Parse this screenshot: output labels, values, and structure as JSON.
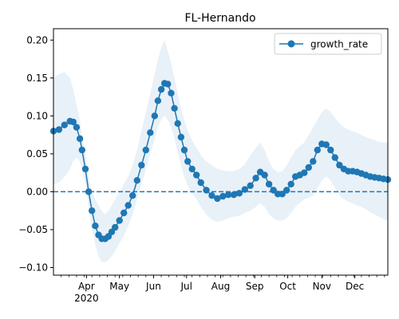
{
  "chart_data": {
    "type": "line",
    "title": "FL-Hernando",
    "xlabel": "",
    "ylabel": "",
    "x_range": [
      "2020-03-02",
      "2020-12-31"
    ],
    "ylim": [
      -0.11,
      0.215
    ],
    "x_ticks": [
      {
        "date": "2020-04-01",
        "label": "Apr",
        "sublabel": "2020"
      },
      {
        "date": "2020-05-01",
        "label": "May"
      },
      {
        "date": "2020-06-01",
        "label": "Jun"
      },
      {
        "date": "2020-07-01",
        "label": "Jul"
      },
      {
        "date": "2020-08-01",
        "label": "Aug"
      },
      {
        "date": "2020-09-01",
        "label": "Sep"
      },
      {
        "date": "2020-10-01",
        "label": "Oct"
      },
      {
        "date": "2020-11-01",
        "label": "Nov"
      },
      {
        "date": "2020-12-01",
        "label": "Dec"
      }
    ],
    "y_ticks": [
      -0.1,
      -0.05,
      0.0,
      0.05,
      0.1,
      0.15,
      0.2
    ],
    "y_tick_labels": [
      "−0.10",
      "−0.05",
      "0.00",
      "0.05",
      "0.10",
      "0.15",
      "0.20"
    ],
    "reference_line": {
      "y": 0.0,
      "style": "dashed"
    },
    "grid": false,
    "legend": {
      "position": "top-right",
      "entries": [
        "growth_rate"
      ]
    },
    "series": [
      {
        "name": "growth_rate",
        "color": "#1f77b4",
        "marker": "circle",
        "x": [
          "2020-03-02",
          "2020-03-07",
          "2020-03-12",
          "2020-03-17",
          "2020-03-20",
          "2020-03-23",
          "2020-03-26",
          "2020-03-28",
          "2020-03-31",
          "2020-04-03",
          "2020-04-06",
          "2020-04-09",
          "2020-04-12",
          "2020-04-15",
          "2020-04-18",
          "2020-04-21",
          "2020-04-24",
          "2020-04-27",
          "2020-05-01",
          "2020-05-05",
          "2020-05-09",
          "2020-05-13",
          "2020-05-17",
          "2020-05-21",
          "2020-05-25",
          "2020-05-29",
          "2020-06-02",
          "2020-06-05",
          "2020-06-08",
          "2020-06-11",
          "2020-06-14",
          "2020-06-17",
          "2020-06-20",
          "2020-06-23",
          "2020-06-26",
          "2020-06-29",
          "2020-07-02",
          "2020-07-06",
          "2020-07-10",
          "2020-07-14",
          "2020-07-19",
          "2020-07-24",
          "2020-07-29",
          "2020-08-03",
          "2020-08-08",
          "2020-08-13",
          "2020-08-18",
          "2020-08-23",
          "2020-08-28",
          "2020-09-02",
          "2020-09-06",
          "2020-09-10",
          "2020-09-14",
          "2020-09-18",
          "2020-09-22",
          "2020-09-26",
          "2020-09-30",
          "2020-10-04",
          "2020-10-08",
          "2020-10-12",
          "2020-10-16",
          "2020-10-20",
          "2020-10-24",
          "2020-10-28",
          "2020-11-01",
          "2020-11-05",
          "2020-11-09",
          "2020-11-13",
          "2020-11-17",
          "2020-11-21",
          "2020-11-25",
          "2020-11-29",
          "2020-12-03",
          "2020-12-07",
          "2020-12-11",
          "2020-12-15",
          "2020-12-19",
          "2020-12-23",
          "2020-12-27",
          "2020-12-31"
        ],
        "values": [
          0.08,
          0.082,
          0.088,
          0.093,
          0.092,
          0.085,
          0.07,
          0.055,
          0.03,
          0.0,
          -0.025,
          -0.045,
          -0.057,
          -0.062,
          -0.062,
          -0.059,
          -0.053,
          -0.047,
          -0.038,
          -0.028,
          -0.018,
          -0.005,
          0.015,
          0.035,
          0.055,
          0.078,
          0.1,
          0.12,
          0.135,
          0.143,
          0.142,
          0.13,
          0.11,
          0.09,
          0.072,
          0.055,
          0.04,
          0.03,
          0.022,
          0.012,
          0.002,
          -0.005,
          -0.009,
          -0.006,
          -0.004,
          -0.004,
          -0.002,
          0.003,
          0.008,
          0.018,
          0.026,
          0.022,
          0.01,
          0.002,
          -0.003,
          -0.003,
          0.002,
          0.01,
          0.02,
          0.022,
          0.025,
          0.032,
          0.04,
          0.055,
          0.063,
          0.062,
          0.055,
          0.045,
          0.035,
          0.03,
          0.027,
          0.027,
          0.026,
          0.024,
          0.022,
          0.02,
          0.019,
          0.018,
          0.017,
          0.016
        ],
        "band_upper": [
          0.15,
          0.155,
          0.158,
          0.15,
          0.135,
          0.115,
          0.095,
          0.075,
          0.05,
          0.02,
          0.0,
          -0.01,
          -0.018,
          -0.025,
          -0.03,
          -0.025,
          -0.018,
          -0.01,
          0.0,
          0.01,
          0.02,
          0.035,
          0.055,
          0.08,
          0.105,
          0.13,
          0.155,
          0.175,
          0.19,
          0.2,
          0.185,
          0.17,
          0.15,
          0.13,
          0.11,
          0.095,
          0.08,
          0.068,
          0.058,
          0.048,
          0.04,
          0.035,
          0.03,
          0.028,
          0.027,
          0.027,
          0.03,
          0.036,
          0.048,
          0.058,
          0.065,
          0.055,
          0.04,
          0.03,
          0.026,
          0.027,
          0.035,
          0.045,
          0.055,
          0.06,
          0.065,
          0.075,
          0.085,
          0.095,
          0.105,
          0.11,
          0.105,
          0.098,
          0.09,
          0.085,
          0.082,
          0.08,
          0.078,
          0.075,
          0.072,
          0.07,
          0.068,
          0.066,
          0.065,
          0.065
        ],
        "band_lower": [
          0.01,
          0.012,
          0.02,
          0.03,
          0.04,
          0.045,
          0.04,
          0.03,
          0.01,
          -0.02,
          -0.05,
          -0.07,
          -0.085,
          -0.093,
          -0.093,
          -0.09,
          -0.085,
          -0.078,
          -0.068,
          -0.058,
          -0.045,
          -0.03,
          -0.01,
          0.01,
          0.03,
          0.05,
          0.07,
          0.085,
          0.095,
          0.1,
          0.095,
          0.085,
          0.07,
          0.052,
          0.035,
          0.02,
          0.008,
          -0.002,
          -0.01,
          -0.02,
          -0.03,
          -0.037,
          -0.04,
          -0.038,
          -0.035,
          -0.033,
          -0.032,
          -0.028,
          -0.025,
          -0.02,
          -0.015,
          -0.02,
          -0.03,
          -0.035,
          -0.038,
          -0.038,
          -0.035,
          -0.028,
          -0.02,
          -0.015,
          -0.01,
          -0.008,
          -0.005,
          0.005,
          0.015,
          0.02,
          0.015,
          0.005,
          -0.005,
          -0.01,
          -0.013,
          -0.015,
          -0.018,
          -0.02,
          -0.023,
          -0.027,
          -0.03,
          -0.033,
          -0.036,
          -0.038
        ]
      }
    ]
  }
}
